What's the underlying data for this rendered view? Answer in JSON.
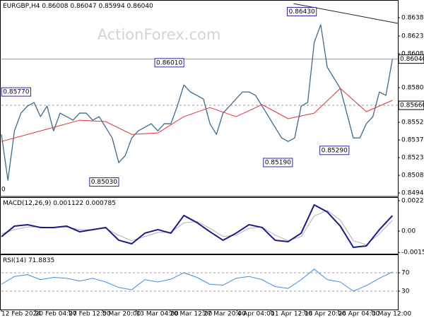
{
  "chart_data": [
    {
      "type": "line",
      "title": "EURGBP,H4 0.86008 0.86047 0.85994 0.86040",
      "watermark": "ActionForex.com",
      "edge_label": "0",
      "xlim": [
        0,
        365
      ],
      "ylim": [
        0.84917,
        0.86514
      ],
      "yticks": [
        {
          "value": 0.8638,
          "label": "0.86380"
        },
        {
          "value": 0.8623,
          "label": "0.86230"
        },
        0.86085,
        0.85805,
        {
          "value": 0.8552,
          "label": "0.85520"
        },
        0.85375,
        {
          "value": 0.8523,
          "label": "0.85230"
        },
        0.85085,
        {
          "value": 0.8494,
          "label": "0.84940"
        }
      ],
      "xticks": [
        {
          "value": 0,
          "label": "12 Feb 2024"
        },
        {
          "value": 31,
          "label": "20 Feb 04:00"
        },
        {
          "value": 62,
          "label": "27 Feb 12:00"
        },
        {
          "value": 93,
          "label": "5 Mar 20:00"
        },
        {
          "value": 124,
          "label": "13 Mar 04:00"
        },
        {
          "value": 155,
          "label": "20 Mar 12:00"
        },
        {
          "value": 186,
          "label": "27 Mar 20:00"
        },
        {
          "value": 217,
          "label": "4 Apr 04:00"
        },
        {
          "value": 248,
          "label": "11 Apr 12:00"
        },
        {
          "value": 279,
          "label": "18 Apr 20:00"
        },
        {
          "value": 310,
          "label": "26 Apr 04:00"
        },
        {
          "value": 341,
          "label": "3 May 12:00"
        }
      ],
      "hlines": [
        {
          "value": 0.8604,
          "label": "0.86040",
          "style": "solid"
        },
        {
          "value": 0.8566,
          "label": "0.85660",
          "style": "dashed"
        }
      ],
      "trendline": {
        "x": [
          269,
          365
        ],
        "values": [
          0.86496,
          0.86334
        ],
        "color": "#222222"
      },
      "annotations": [
        {
          "x": 290,
          "value": 0.8643,
          "label": "0.86430"
        },
        {
          "x": 168,
          "value": 0.8601,
          "label": "0.86010"
        },
        {
          "x": 27,
          "value": 0.8577,
          "label": "0.85770"
        },
        {
          "x": 108,
          "value": 0.8503,
          "label": "0.85030"
        },
        {
          "x": 268,
          "value": 0.8519,
          "label": "0.85190"
        },
        {
          "x": 320,
          "value": 0.8529,
          "label": "0.85290"
        }
      ],
      "series": [
        {
          "color": "#3b6a8c",
          "width": 1.3,
          "x": [
            0,
            6,
            12,
            18,
            24,
            30,
            36,
            42,
            48,
            54,
            60,
            66,
            72,
            78,
            84,
            90,
            96,
            102,
            108,
            114,
            120,
            126,
            132,
            138,
            144,
            150,
            156,
            162,
            168,
            174,
            180,
            186,
            192,
            198,
            204,
            210,
            216,
            222,
            228,
            234,
            240,
            246,
            252,
            258,
            264,
            270,
            276,
            282,
            288,
            294,
            300,
            306,
            312,
            318,
            324,
            330,
            336,
            342,
            348,
            354,
            360
          ],
          "values": [
            0.85421,
            0.85044,
            0.8545,
            0.85596,
            0.85654,
            0.85683,
            0.85567,
            0.85654,
            0.8545,
            0.85596,
            0.85567,
            0.85538,
            0.85596,
            0.85596,
            0.85538,
            0.85567,
            0.85479,
            0.85392,
            0.85189,
            0.85247,
            0.85392,
            0.8545,
            0.85479,
            0.85509,
            0.8545,
            0.85509,
            0.85509,
            0.85654,
            0.85828,
            0.8577,
            0.85741,
            0.85712,
            0.85509,
            0.85421,
            0.85596,
            0.85654,
            0.85712,
            0.8577,
            0.8577,
            0.85741,
            0.85654,
            0.85567,
            0.85479,
            0.85392,
            0.85363,
            0.85392,
            0.85654,
            0.85683,
            0.86177,
            0.86322,
            0.85973,
            0.85886,
            0.85799,
            0.85596,
            0.85392,
            0.85392,
            0.85509,
            0.85567,
            0.8577,
            0.85741,
            0.8604
          ]
        },
        {
          "color": "#e0303a",
          "width": 1,
          "x": [
            0,
            24,
            48,
            72,
            96,
            120,
            144,
            168,
            192,
            216,
            240,
            264,
            288,
            312,
            336,
            360
          ],
          "values": [
            0.85363,
            0.85421,
            0.85479,
            0.85538,
            0.85526,
            0.85421,
            0.85433,
            0.85567,
            0.85642,
            0.85567,
            0.85666,
            0.8555,
            0.85596,
            0.85799,
            0.85608,
            0.85701
          ]
        }
      ]
    },
    {
      "type": "line",
      "title": "MACD(12,26,9) 0.001122 0.000785",
      "xlim": [
        0,
        365
      ],
      "ylim": [
        -0.00165,
        0.00247
      ],
      "yticks": [
        0.002216,
        {
          "value": 0,
          "label": "0.00"
        },
        -0.001556
      ],
      "series": [
        {
          "color": "#b0b0b0",
          "width": 1,
          "x": [
            0,
            12,
            24,
            36,
            48,
            60,
            72,
            84,
            96,
            108,
            120,
            132,
            144,
            156,
            168,
            180,
            192,
            204,
            216,
            228,
            240,
            252,
            264,
            276,
            288,
            300,
            312,
            324,
            336,
            348,
            360
          ],
          "values": [
            -0.0002,
            0.0001,
            0.0003,
            0.0003,
            0.00026,
            0.0003,
            0.0001,
            0.0001,
            0.0002,
            -0.0003,
            -0.0007,
            -0.0004,
            -0.0001,
            -0.0001,
            0.0006,
            0.0007,
            0.0002,
            -0.0004,
            -0.0003,
            0.0002,
            0.0003,
            -0.0003,
            -0.0007,
            -0.0004,
            0.0011,
            0.0015,
            0.0008,
            -0.0007,
            -0.001,
            -0.0002,
            0.000785
          ]
        },
        {
          "color": "#1a1a8c",
          "width": 2,
          "x": [
            0,
            12,
            24,
            36,
            48,
            60,
            72,
            84,
            96,
            108,
            120,
            132,
            144,
            156,
            168,
            180,
            192,
            204,
            216,
            228,
            240,
            252,
            264,
            276,
            288,
            300,
            312,
            324,
            336,
            348,
            360
          ],
          "values": [
            -0.000412,
            0.000361,
            0.000464,
            0.000258,
            0.000258,
            0.000361,
            -5.2e-05,
            0.000103,
            0.000258,
            -0.00067,
            -0.000928,
            -0.000155,
            0.000103,
            -0.000155,
            0.001134,
            0.000619,
            -5.2e-05,
            -0.00067,
            -0.000155,
            0.000464,
            0.000258,
            -0.00067,
            -0.000773,
            -0.000155,
            0.001907,
            0.001392,
            0.000361,
            -0.001186,
            -0.001082,
            0.000103,
            0.001122
          ]
        }
      ]
    },
    {
      "type": "line",
      "title": "RSI(14) 71.8835",
      "xlim": [
        0,
        365
      ],
      "ylim": [
        0,
        100
      ],
      "yticks": [
        70,
        30
      ],
      "hlines": [
        {
          "value": 70,
          "style": "dashed"
        },
        {
          "value": 30,
          "style": "dashed"
        }
      ],
      "series": [
        {
          "color": "#3a8ee6",
          "width": 1,
          "x": [
            0,
            12,
            24,
            36,
            48,
            60,
            72,
            84,
            96,
            108,
            120,
            132,
            144,
            156,
            168,
            180,
            192,
            204,
            216,
            228,
            240,
            252,
            264,
            276,
            288,
            300,
            312,
            324,
            336,
            348,
            360
          ],
          "values": [
            45,
            62,
            66,
            55,
            60,
            58,
            52,
            58,
            50,
            38,
            33,
            55,
            50,
            56,
            70,
            60,
            45,
            43,
            58,
            62,
            55,
            40,
            36,
            55,
            78,
            55,
            50,
            30,
            42,
            58,
            71.8835
          ]
        }
      ]
    }
  ]
}
